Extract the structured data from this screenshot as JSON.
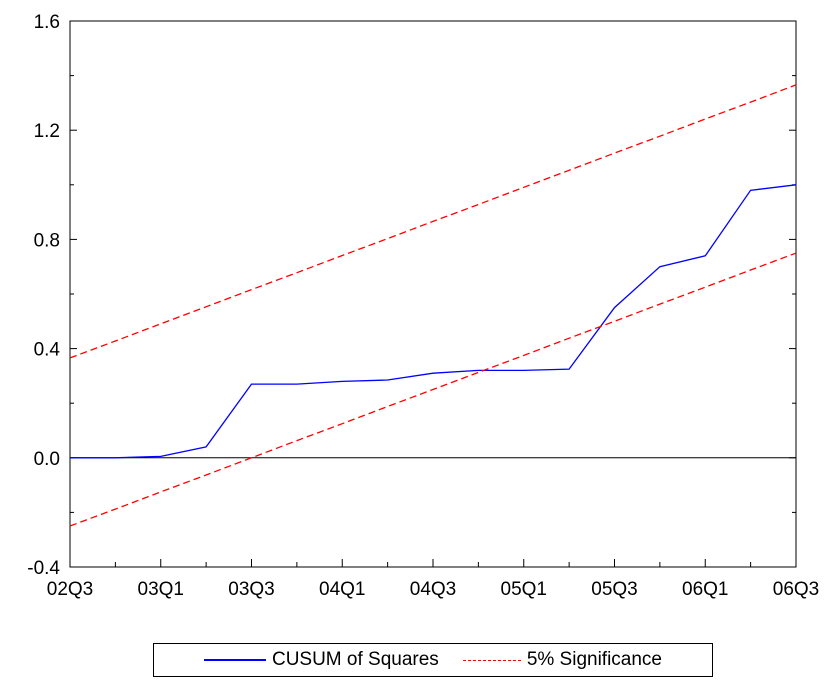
{
  "chart_data": {
    "type": "line",
    "categories": [
      "02Q3",
      "02Q4",
      "03Q1",
      "03Q2",
      "03Q3",
      "03Q4",
      "04Q1",
      "04Q2",
      "04Q3",
      "04Q4",
      "05Q1",
      "05Q2",
      "05Q3",
      "05Q4",
      "06Q1",
      "06Q2",
      "06Q3"
    ],
    "x_tick_labels": [
      "02Q3",
      "03Q1",
      "03Q3",
      "04Q1",
      "04Q3",
      "05Q1",
      "05Q3",
      "06Q1",
      "06Q3"
    ],
    "y_tick_labels": [
      "-0.4",
      "0.0",
      "0.4",
      "0.8",
      "1.2",
      "1.6"
    ],
    "ylim": [
      -0.4,
      1.6
    ],
    "reference_line": 0,
    "grid": false,
    "legend_position": "bottom",
    "series": [
      {
        "name": "CUSUM of Squares",
        "color": "#0000ff",
        "style": "solid",
        "values": [
          0.0,
          0.0,
          0.005,
          0.04,
          0.27,
          0.27,
          0.28,
          0.285,
          0.31,
          0.32,
          0.32,
          0.325,
          0.55,
          0.7,
          0.74,
          0.98,
          1.0
        ]
      },
      {
        "name": "5% Significance",
        "color": "#ff0000",
        "style": "dashed",
        "values": [
          0.366,
          0.428,
          0.491,
          0.553,
          0.616,
          0.678,
          0.741,
          0.803,
          0.866,
          0.928,
          0.991,
          1.053,
          1.116,
          1.178,
          1.241,
          1.303,
          1.366
        ]
      },
      {
        "name": "5% Significance",
        "color": "#ff0000",
        "style": "dashed",
        "values": [
          -0.25,
          -0.188,
          -0.125,
          -0.063,
          0.0,
          0.063,
          0.125,
          0.188,
          0.25,
          0.313,
          0.375,
          0.438,
          0.5,
          0.563,
          0.625,
          0.688,
          0.75
        ]
      }
    ]
  },
  "legend": {
    "cusum_label": "CUSUM of Squares",
    "significance_label": "5% Significance"
  }
}
